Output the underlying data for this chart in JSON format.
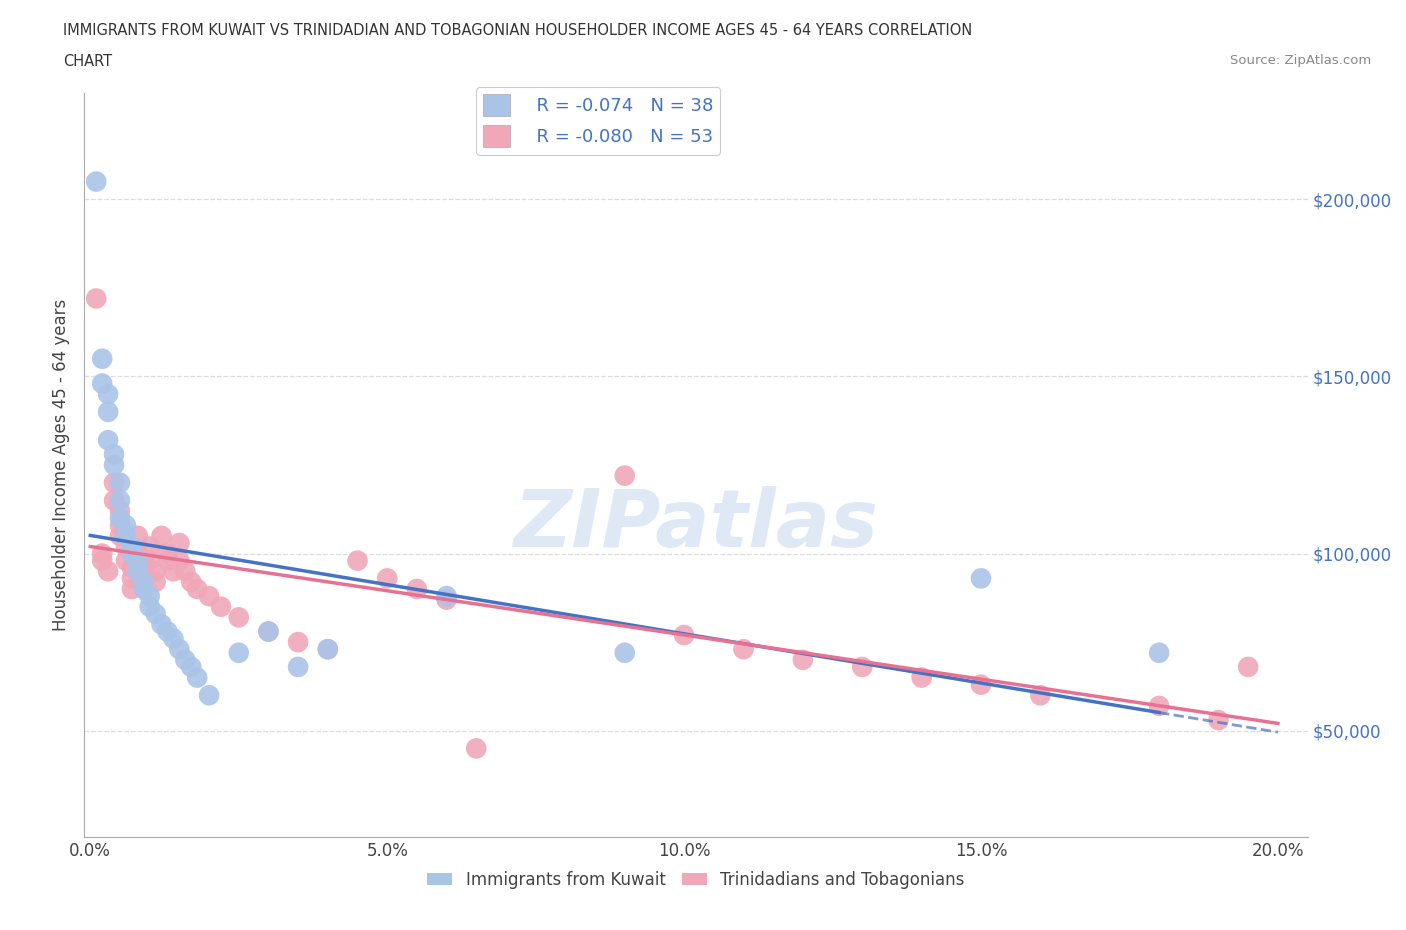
{
  "title_line1": "IMMIGRANTS FROM KUWAIT VS TRINIDADIAN AND TOBAGONIAN HOUSEHOLDER INCOME AGES 45 - 64 YEARS CORRELATION",
  "title_line2": "CHART",
  "source_text": "Source: ZipAtlas.com",
  "ylabel": "Householder Income Ages 45 - 64 years",
  "xlim": [
    -0.001,
    0.205
  ],
  "ylim": [
    20000,
    230000
  ],
  "yticks": [
    50000,
    100000,
    150000,
    200000
  ],
  "ytick_labels": [
    "$50,000",
    "$100,000",
    "$150,000",
    "$200,000"
  ],
  "xticks": [
    0.0,
    0.05,
    0.1,
    0.15,
    0.2
  ],
  "xtick_labels": [
    "0.0%",
    "5.0%",
    "10.0%",
    "15.0%",
    "20.0%"
  ],
  "legend_r1": "R = -0.074",
  "legend_n1": "N = 38",
  "legend_r2": "R = -0.080",
  "legend_n2": "N = 53",
  "color_kuwait": "#aac4e8",
  "color_trini": "#f0a8b8",
  "line_color_kuwait": "#4472c4",
  "line_color_trini": "#e87090",
  "background_color": "#ffffff",
  "grid_color": "#dddddd",
  "kuwait_x": [
    0.001,
    0.002,
    0.002,
    0.003,
    0.003,
    0.003,
    0.004,
    0.004,
    0.005,
    0.005,
    0.005,
    0.006,
    0.006,
    0.007,
    0.007,
    0.008,
    0.008,
    0.009,
    0.009,
    0.01,
    0.01,
    0.011,
    0.012,
    0.013,
    0.014,
    0.015,
    0.016,
    0.017,
    0.018,
    0.02,
    0.025,
    0.03,
    0.035,
    0.04,
    0.06,
    0.09,
    0.15,
    0.18
  ],
  "kuwait_y": [
    205000,
    155000,
    148000,
    145000,
    140000,
    132000,
    128000,
    125000,
    120000,
    115000,
    110000,
    108000,
    105000,
    102000,
    100000,
    98000,
    95000,
    92000,
    90000,
    88000,
    85000,
    83000,
    80000,
    78000,
    76000,
    73000,
    70000,
    68000,
    65000,
    60000,
    72000,
    78000,
    68000,
    73000,
    88000,
    72000,
    93000,
    72000
  ],
  "trini_x": [
    0.001,
    0.002,
    0.002,
    0.003,
    0.004,
    0.004,
    0.005,
    0.005,
    0.005,
    0.006,
    0.006,
    0.007,
    0.007,
    0.007,
    0.008,
    0.008,
    0.009,
    0.009,
    0.01,
    0.01,
    0.011,
    0.011,
    0.012,
    0.013,
    0.013,
    0.014,
    0.015,
    0.015,
    0.016,
    0.017,
    0.018,
    0.02,
    0.022,
    0.025,
    0.03,
    0.035,
    0.04,
    0.045,
    0.05,
    0.055,
    0.06,
    0.065,
    0.09,
    0.1,
    0.11,
    0.12,
    0.13,
    0.14,
    0.15,
    0.16,
    0.18,
    0.19,
    0.195
  ],
  "trini_y": [
    172000,
    100000,
    98000,
    95000,
    120000,
    115000,
    112000,
    108000,
    105000,
    102000,
    98000,
    96000,
    93000,
    90000,
    105000,
    100000,
    98000,
    95000,
    102000,
    98000,
    95000,
    92000,
    105000,
    100000,
    98000,
    95000,
    103000,
    98000,
    95000,
    92000,
    90000,
    88000,
    85000,
    82000,
    78000,
    75000,
    73000,
    98000,
    93000,
    90000,
    87000,
    45000,
    122000,
    77000,
    73000,
    70000,
    68000,
    65000,
    63000,
    60000,
    57000,
    53000,
    68000
  ]
}
